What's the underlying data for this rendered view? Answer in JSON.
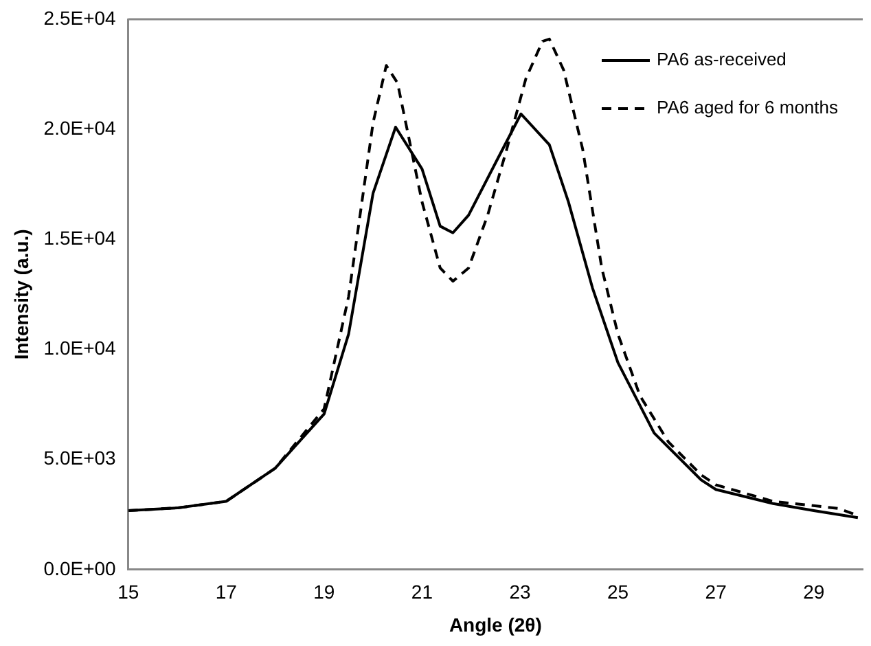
{
  "chart_data": {
    "type": "line",
    "xlabel": "Angle (2θ)",
    "ylabel": "Intensity (a.u.)",
    "xlim": [
      15,
      30
    ],
    "xticks": [
      15,
      17,
      19,
      21,
      23,
      25,
      27,
      29
    ],
    "ylim": [
      0,
      25000
    ],
    "yticks": [
      {
        "value": 0,
        "label": "0.0E+00"
      },
      {
        "value": 5000,
        "label": "5.0E+03"
      },
      {
        "value": 10000,
        "label": "1.0E+04"
      },
      {
        "value": 15000,
        "label": "1.5E+04"
      },
      {
        "value": 20000,
        "label": "2.0E+04"
      },
      {
        "value": 25000,
        "label": "2.5E+04"
      }
    ],
    "grid": false,
    "legend": "top right",
    "marker": "none",
    "series": [
      {
        "name": "PA6 as-received",
        "color": "#000000",
        "line_style": "solid",
        "x": [
          15,
          16,
          17,
          18,
          19,
          19.5,
          20,
          20.46,
          21,
          21.37,
          21.63,
          21.95,
          22.53,
          23.02,
          23.6,
          23.99,
          24.48,
          25,
          25.74,
          26.7,
          27,
          28.17,
          29,
          29.9
        ],
        "values": [
          2680,
          2800,
          3100,
          4600,
          7070,
          10700,
          17100,
          20100,
          18200,
          15600,
          15300,
          16100,
          18600,
          20700,
          19300,
          16700,
          12800,
          9400,
          6200,
          4070,
          3640,
          3000,
          2680,
          2360
        ]
      },
      {
        "name": "PA6 aged for 6 months",
        "color": "#000000",
        "line_style": "dashed",
        "x": [
          15,
          16,
          17,
          18,
          19,
          19.5,
          20,
          20.27,
          20.5,
          21,
          21.37,
          21.63,
          21.95,
          22.34,
          22.73,
          23.12,
          23.46,
          23.6,
          23.89,
          24.28,
          24.67,
          25,
          25.45,
          26.03,
          26.7,
          27,
          28.17,
          29.5,
          29.9
        ],
        "values": [
          2680,
          2800,
          3100,
          4600,
          7300,
          12400,
          20300,
          22900,
          22100,
          16700,
          13700,
          13100,
          13700,
          16100,
          19100,
          22300,
          24000,
          24100,
          22700,
          19100,
          13700,
          10700,
          7900,
          5800,
          4300,
          3850,
          3100,
          2780,
          2460
        ]
      }
    ]
  }
}
